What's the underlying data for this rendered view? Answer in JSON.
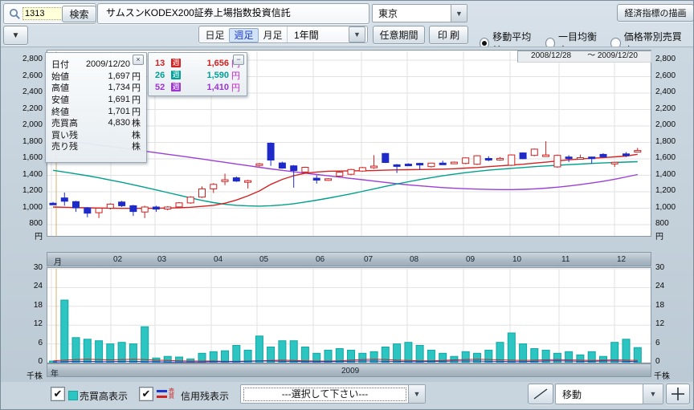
{
  "icons": {
    "dropdown": "▼",
    "check": "✔",
    "close": "×",
    "minimize": "−",
    "plus": "＋",
    "search": "magnifier",
    "trendline": "diagonal-line"
  },
  "toolbar": {
    "search_value": "1313",
    "search_button": "検索",
    "name_value": "サムスンKODEX200証券上場指数投資信託",
    "exchange_value": "東京",
    "econ_button": "経済指標の描画"
  },
  "toolbar2": {
    "tabs": [
      {
        "key": "daily",
        "label": "日足",
        "active": false
      },
      {
        "key": "weekly",
        "label": "週足",
        "active": true
      },
      {
        "key": "monthly",
        "label": "月足",
        "active": false
      }
    ],
    "period_value": "1年間",
    "range_button": "任意期間",
    "print_button": "印 刷",
    "radios": [
      {
        "key": "moving-average",
        "label": "移動平均線",
        "selected": true
      },
      {
        "key": "ichimoku",
        "label": "一目均衡表",
        "selected": false
      },
      {
        "key": "volume-by-price",
        "label": "価格帯別売買高",
        "selected": false
      }
    ]
  },
  "chart": {
    "date_range": "2008/12/28　　～ 2009/12/20",
    "price_axis": [
      "2,800",
      "2,600",
      "2,400",
      "2,200",
      "2,000",
      "1,800",
      "1,600",
      "1,400",
      "1,200",
      "1,000",
      "800"
    ],
    "price_axis_unit": "円",
    "volume_axis": [
      "30",
      "24",
      "18",
      "12",
      "6",
      "0"
    ],
    "volume_axis_unit": "千株",
    "months": [
      "月",
      "02",
      "03",
      "04",
      "05",
      "06",
      "07",
      "08",
      "09",
      "10",
      "11",
      "12"
    ],
    "year_label": "年",
    "year_value": "2009",
    "info_box": {
      "rows": [
        {
          "label": "日付",
          "value": "2009/12/20",
          "unit": ""
        },
        {
          "label": "始値",
          "value": "1,697",
          "unit": "円"
        },
        {
          "label": "高値",
          "value": "1,734",
          "unit": "円"
        },
        {
          "label": "安値",
          "value": "1,691",
          "unit": "円"
        },
        {
          "label": "終値",
          "value": "1,701",
          "unit": "円"
        },
        {
          "label": "売買高",
          "value": "4,830",
          "unit": "株"
        },
        {
          "label": "買い残",
          "value": "",
          "unit": "株"
        },
        {
          "label": "売り残",
          "value": "",
          "unit": "株"
        }
      ]
    },
    "legend": {
      "rows": [
        {
          "weeks": "13",
          "badge": "週",
          "value": "1,656",
          "unit": "円",
          "color": "#d42222"
        },
        {
          "weeks": "26",
          "badge": "週",
          "value": "1,590",
          "unit": "円",
          "color": "#00a096"
        },
        {
          "weeks": "52",
          "badge": "週",
          "value": "1,410",
          "unit": "円",
          "color": "#9c35d2"
        }
      ]
    }
  },
  "bottom": {
    "volume_checkbox": {
      "checked": true,
      "label": "売買高表示"
    },
    "margin_checkbox": {
      "checked": true,
      "label": "信用残表示",
      "icon_chars": [
        "売",
        "買"
      ]
    },
    "select_placeholder": "---選択して下さい---",
    "move_value": "移動"
  },
  "colors": {
    "candle_up": "#cf1f1f",
    "candle_down": "#1f2bc8",
    "ma13": "#d42222",
    "ma26": "#00a08c",
    "ma52": "#9c3fd6",
    "volume_bar": "#2cc5c1",
    "volume_bar_edge": "#12a7a3",
    "margin_buy_line": "#cc2222",
    "margin_sell_line": "#2233cc",
    "cursor_line": "#d4b06a",
    "grid": "#e2e2e2",
    "tab_active_bg": "#d2e3f8",
    "search_input_bg": "#ffffd8"
  },
  "chart_data": {
    "type": "candlestick+volume",
    "x_axis": {
      "unit": "week",
      "months": [
        "月",
        "02",
        "03",
        "04",
        "05",
        "06",
        "07",
        "08",
        "09",
        "10",
        "11",
        "12"
      ],
      "year": "2009"
    },
    "price_range": [
      800,
      2800
    ],
    "volume_range_thousand_shares": [
      0,
      30
    ],
    "weeks_ohlcv": [
      [
        1060,
        1075,
        1040,
        1052,
        0.5
      ],
      [
        1125,
        1190,
        1030,
        1085,
        20
      ],
      [
        1080,
        1090,
        955,
        1005,
        8
      ],
      [
        1005,
        1015,
        890,
        940,
        7.5
      ],
      [
        945,
        1010,
        880,
        1000,
        7
      ],
      [
        1000,
        1060,
        985,
        1050,
        6
      ],
      [
        1075,
        1090,
        1015,
        1030,
        6.5
      ],
      [
        1030,
        1040,
        905,
        960,
        6
      ],
      [
        955,
        1030,
        880,
        1015,
        11.5
      ],
      [
        1015,
        1030,
        955,
        990,
        1.5
      ],
      [
        990,
        1025,
        975,
        1015,
        2
      ],
      [
        1015,
        1075,
        1005,
        1065,
        1.8
      ],
      [
        1065,
        1145,
        1055,
        1135,
        1.2
      ],
      [
        1135,
        1265,
        1125,
        1235,
        3
      ],
      [
        1235,
        1305,
        1185,
        1290,
        3.5
      ],
      [
        1325,
        1420,
        1280,
        1345,
        3.8
      ],
      [
        1370,
        1385,
        1320,
        1330,
        5.5
      ],
      [
        1335,
        1345,
        1240,
        1335,
        4
      ],
      [
        1530,
        1550,
        1505,
        1540,
        8.5
      ],
      [
        1790,
        1800,
        1515,
        1585,
        5
      ],
      [
        1550,
        1565,
        1480,
        1488,
        7
      ],
      [
        1515,
        1525,
        1250,
        1458,
        7
      ],
      [
        1440,
        1505,
        1430,
        1498,
        5
      ],
      [
        1365,
        1400,
        1300,
        1342,
        3
      ],
      [
        1350,
        1365,
        1335,
        1358,
        4
      ],
      [
        1390,
        1445,
        1380,
        1438,
        4.5
      ],
      [
        1412,
        1478,
        1402,
        1470,
        4
      ],
      [
        1452,
        1502,
        1442,
        1494,
        3
      ],
      [
        1495,
        1645,
        1478,
        1512,
        3.5
      ],
      [
        1665,
        1672,
        1548,
        1556,
        5
      ],
      [
        1528,
        1538,
        1428,
        1522,
        6
      ],
      [
        1536,
        1546,
        1518,
        1528,
        6.5
      ],
      [
        1545,
        1552,
        1465,
        1530,
        5.5
      ],
      [
        1505,
        1552,
        1495,
        1548,
        4
      ],
      [
        1548,
        1578,
        1528,
        1545,
        3
      ],
      [
        1552,
        1568,
        1538,
        1560,
        2
      ],
      [
        1545,
        1618,
        1535,
        1612,
        3.5
      ],
      [
        1535,
        1645,
        1525,
        1638,
        3
      ],
      [
        1605,
        1632,
        1572,
        1598,
        4
      ],
      [
        1602,
        1622,
        1578,
        1606,
        6.5
      ],
      [
        1522,
        1655,
        1512,
        1648,
        9.5
      ],
      [
        1672,
        1680,
        1595,
        1602,
        6
      ],
      [
        1642,
        1725,
        1632,
        1718,
        4.5
      ],
      [
        1642,
        1815,
        1628,
        1648,
        4
      ],
      [
        1502,
        1652,
        1492,
        1642,
        3
      ],
      [
        1622,
        1645,
        1562,
        1602,
        3.5
      ],
      [
        1605,
        1652,
        1592,
        1615,
        2.5
      ],
      [
        1622,
        1628,
        1542,
        1605,
        3.5
      ],
      [
        1655,
        1668,
        1618,
        1626,
        2
      ],
      [
        1548,
        1562,
        1502,
        1558,
        6.5
      ],
      [
        1660,
        1682,
        1622,
        1645,
        7.5
      ],
      [
        1697,
        1734,
        1691,
        1701,
        4.83
      ]
    ],
    "ma13": [
      1015,
      1012,
      1008,
      1005,
      1002,
      1000,
      998,
      998,
      998,
      1000,
      1002,
      1006,
      1012,
      1022,
      1035,
      1060,
      1100,
      1150,
      1210,
      1290,
      1350,
      1395,
      1425,
      1440,
      1450,
      1452,
      1455,
      1456,
      1458,
      1462,
      1466,
      1468,
      1470,
      1472,
      1475,
      1480,
      1488,
      1495,
      1505,
      1515,
      1525,
      1535,
      1548,
      1560,
      1575,
      1588,
      1598,
      1608,
      1616,
      1624,
      1634,
      1656
    ],
    "ma26": [
      1460,
      1440,
      1418,
      1395,
      1370,
      1342,
      1315,
      1285,
      1255,
      1222,
      1190,
      1158,
      1125,
      1095,
      1068,
      1048,
      1035,
      1028,
      1025,
      1030,
      1040,
      1055,
      1075,
      1098,
      1122,
      1148,
      1175,
      1205,
      1235,
      1265,
      1295,
      1322,
      1348,
      1372,
      1394,
      1414,
      1432,
      1448,
      1462,
      1474,
      1485,
      1495,
      1505,
      1514,
      1522,
      1530,
      1537,
      1544,
      1550,
      1556,
      1561,
      1566
    ],
    "ma52": [
      1840,
      1822,
      1804,
      1786,
      1768,
      1750,
      1732,
      1713,
      1694,
      1675,
      1656,
      1637,
      1618,
      1598,
      1578,
      1558,
      1538,
      1518,
      1498,
      1478,
      1460,
      1443,
      1426,
      1410,
      1394,
      1378,
      1362,
      1346,
      1330,
      1314,
      1298,
      1284,
      1272,
      1261,
      1251,
      1243,
      1237,
      1232,
      1228,
      1226,
      1226,
      1229,
      1235,
      1244,
      1256,
      1270,
      1287,
      1306,
      1328,
      1352,
      1380,
      1410
    ],
    "margin_buy": [
      0.6,
      0.8,
      1.0,
      1.1,
      1.0,
      0.9,
      1.0,
      1.1,
      1.0,
      0.8,
      0.7,
      0.6,
      0.5,
      0.5,
      0.5,
      0.4,
      0.4,
      0.5,
      0.6,
      0.7,
      0.8,
      0.7,
      0.6,
      0.5,
      0.5,
      0.6,
      0.8,
      1.0,
      1.1,
      1.0,
      0.8,
      0.7,
      0.6,
      0.6,
      0.7,
      0.9,
      1.0,
      1.1,
      1.0,
      0.9,
      0.8,
      0.7,
      0.8,
      0.9,
      1.0,
      0.9,
      0.8,
      0.7,
      0.8,
      0.9,
      0.8,
      0.7
    ],
    "margin_sell": [
      0.2,
      0.3,
      0.4,
      0.4,
      0.3,
      0.3,
      0.4,
      0.4,
      0.3,
      0.3,
      0.2,
      0.2,
      0.2,
      0.2,
      0.3,
      0.3,
      0.3,
      0.4,
      0.5,
      0.5,
      0.4,
      0.4,
      0.3,
      0.3,
      0.3,
      0.4,
      0.4,
      0.5,
      0.5,
      0.4,
      0.4,
      0.3,
      0.3,
      0.4,
      0.4,
      0.5,
      0.5,
      0.5,
      0.4,
      0.4,
      0.3,
      0.3,
      0.4,
      0.5,
      0.6,
      0.5,
      0.4,
      0.4,
      0.5,
      0.5,
      0.4,
      0.3
    ]
  }
}
